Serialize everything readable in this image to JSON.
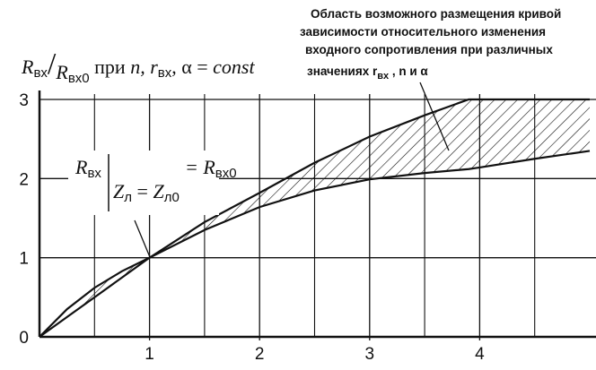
{
  "chart_data": {
    "type": "band",
    "ylabel": [
      "R",
      "вх",
      "/",
      "R",
      "вх0",
      " при ",
      "n",
      ", r",
      "вх",
      ", α = ",
      "const"
    ],
    "x": [
      0,
      0.25,
      0.5,
      0.75,
      1,
      1.5,
      2,
      2.5,
      3,
      3.5,
      3.9,
      4,
      4.5,
      5
    ],
    "series": [
      {
        "color": "#111111",
        "values": [
          0,
          0.35,
          0.62,
          0.83,
          1,
          1.45,
          1.82,
          2.2,
          2.53,
          2.8,
          3,
          3,
          3,
          3
        ]
      },
      {
        "color": "#111111",
        "values": [
          0,
          0.25,
          0.5,
          0.75,
          1,
          1.35,
          1.64,
          1.85,
          1.99,
          2.07,
          2.12,
          2.14,
          2.25,
          2.35
        ]
      }
    ],
    "xlim": [
      0,
      5
    ],
    "ylim": [
      0,
      3
    ],
    "xticks": [
      1,
      2,
      3,
      4
    ],
    "yticks": [
      0,
      1,
      2,
      3
    ],
    "x_minor_grid": [
      0.5,
      1.5,
      2.5,
      3.5,
      4.5
    ],
    "grid": true,
    "hatch": true,
    "point_label": [
      "R",
      "вх",
      "Z",
      "л",
      " = ",
      "Z",
      "л0",
      "= R",
      "вх0"
    ],
    "note": {
      "lines": [
        "Область возможного размещения кривой",
        "зависимости относительного изменения",
        "входного сопротивления при различных"
      ],
      "last": [
        "значениях r",
        "вх",
        " , n и α"
      ]
    }
  }
}
